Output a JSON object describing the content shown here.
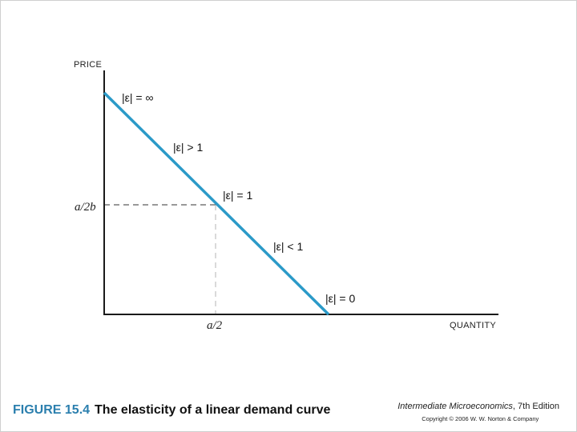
{
  "diagram": {
    "y_axis_title": "PRICE",
    "x_axis_title": "QUANTITY",
    "y_tick": "a/2b",
    "x_tick": "a/2",
    "elasticity_labels": {
      "top": "|ε| = ∞",
      "upper": "|ε| > 1",
      "mid": "|ε| = 1",
      "lower": "|ε| < 1",
      "bottom": "|ε| = 0"
    },
    "curve_color": "#2b9ac8",
    "figure_color": "#2b7fae"
  },
  "caption": {
    "figure_number": "FIGURE 15.4",
    "title": "The elasticity of a linear demand curve"
  },
  "credit": {
    "book": "Intermediate Microeconomics",
    "edition": ", 7th Edition",
    "copyright": "Copyright © 2006 W. W. Norton & Company"
  }
}
